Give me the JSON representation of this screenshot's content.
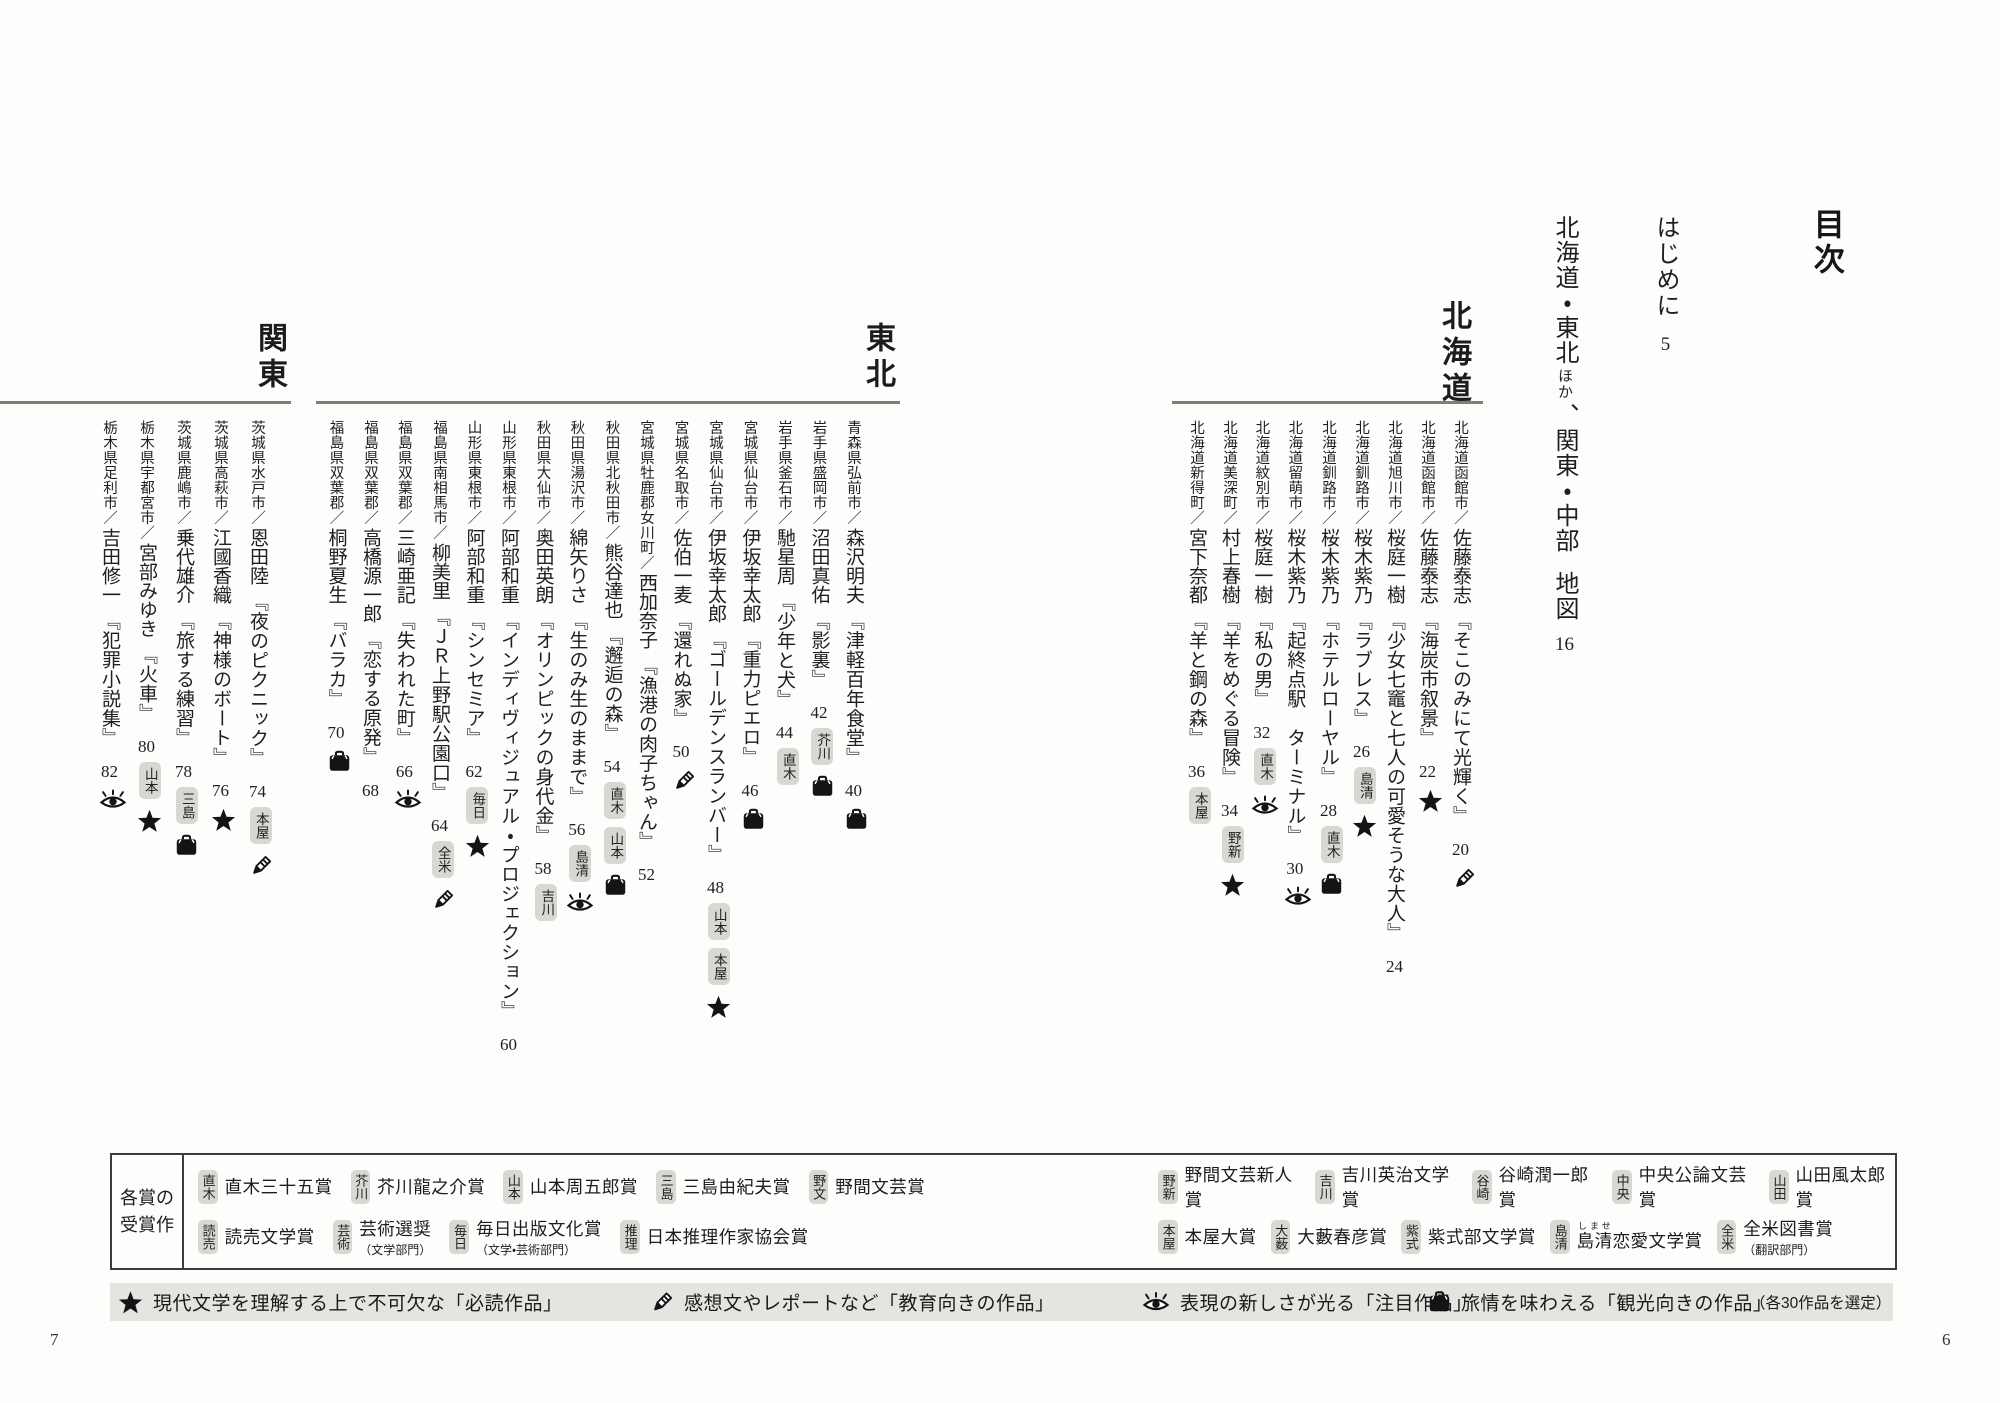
{
  "spread": {
    "title": "目次",
    "left_folio": "7",
    "right_folio": "6",
    "intro": {
      "label": "はじめに",
      "page": "5"
    },
    "map_line": {
      "part1": "北海道・東北",
      "small": "ほか",
      "part2": "、関東・中部",
      "label": "地図",
      "page": "16"
    }
  },
  "sections": [
    {
      "name": "北海道",
      "entries": [
        {
          "location": "北海道函館市",
          "author": "佐藤泰志",
          "title": "そこのみにて光輝く",
          "page": "20",
          "badges": [],
          "icons": [
            "pencil"
          ]
        },
        {
          "location": "北海道函館市",
          "author": "佐藤泰志",
          "title": "海炭市叙景",
          "page": "22",
          "badges": [],
          "icons": [
            "star"
          ]
        },
        {
          "location": "北海道旭川市",
          "author": "桜庭一樹",
          "title": "少女七竈と七人の可愛そうな大人",
          "page": "24",
          "badges": [],
          "icons": []
        },
        {
          "location": "北海道釧路市",
          "author": "桜木紫乃",
          "title": "ラブレス",
          "page": "26",
          "badges": [
            "島清"
          ],
          "icons": [
            "star"
          ]
        },
        {
          "location": "北海道釧路市",
          "author": "桜木紫乃",
          "title": "ホテルローヤル",
          "page": "28",
          "badges": [
            "直木"
          ],
          "icons": [
            "bag"
          ]
        },
        {
          "location": "北海道留萌市",
          "author": "桜木紫乃",
          "title": "起終点駅　ターミナル",
          "page": "30",
          "badges": [],
          "icons": [
            "eye"
          ]
        },
        {
          "location": "北海道紋別市",
          "author": "桜庭一樹",
          "title": "私の男",
          "page": "32",
          "badges": [
            "直木"
          ],
          "icons": [
            "eye"
          ]
        },
        {
          "location": "北海道美深町",
          "author": "村上春樹",
          "title": "羊をめぐる冒険",
          "page": "34",
          "badges": [
            "野新"
          ],
          "icons": [
            "star"
          ]
        },
        {
          "location": "北海道新得町",
          "author": "宮下奈都",
          "title": "羊と鋼の森",
          "page": "36",
          "badges": [
            "本屋"
          ],
          "icons": []
        }
      ]
    },
    {
      "name": "東北",
      "entries": [
        {
          "location": "青森県弘前市",
          "author": "森沢明夫",
          "title": "津軽百年食堂",
          "page": "40",
          "badges": [],
          "icons": [
            "bag"
          ]
        },
        {
          "location": "岩手県盛岡市",
          "author": "沼田真佑",
          "title": "影裏",
          "page": "42",
          "badges": [
            "芥川"
          ],
          "icons": [
            "bag"
          ]
        },
        {
          "location": "岩手県釜石市",
          "author": "馳星周",
          "title": "少年と犬",
          "page": "44",
          "badges": [
            "直木"
          ],
          "icons": []
        },
        {
          "location": "宮城県仙台市",
          "author": "伊坂幸太郎",
          "title": "重力ピエロ",
          "page": "46",
          "badges": [],
          "icons": [
            "bag"
          ]
        },
        {
          "location": "宮城県仙台市",
          "author": "伊坂幸太郎",
          "title": "ゴールデンスランバー",
          "page": "48",
          "badges": [
            "山本",
            "本屋"
          ],
          "icons": [
            "star"
          ]
        },
        {
          "location": "宮城県名取市",
          "author": "佐伯一麦",
          "title": "還れぬ家",
          "page": "50",
          "badges": [],
          "icons": [
            "pencil"
          ]
        },
        {
          "location": "宮城県牡鹿郡女川町",
          "author": "西加奈子",
          "title": "漁港の肉子ちゃん",
          "page": "52",
          "badges": [],
          "icons": []
        },
        {
          "location": "秋田県北秋田市",
          "author": "熊谷達也",
          "title": "邂逅の森",
          "page": "54",
          "badges": [
            "直木",
            "山本"
          ],
          "icons": [
            "bag"
          ]
        },
        {
          "location": "秋田県湯沢市",
          "author": "綿矢りさ",
          "title": "生のみ生のままで",
          "page": "56",
          "badges": [
            "島清"
          ],
          "icons": [
            "eye"
          ]
        },
        {
          "location": "秋田県大仙市",
          "author": "奥田英朗",
          "title": "オリンピックの身代金",
          "page": "58",
          "badges": [
            "吉川"
          ],
          "icons": []
        },
        {
          "location": "山形県東根市",
          "author": "阿部和重",
          "title": "インディヴィジュアル・プロジェクション",
          "page": "60",
          "badges": [],
          "icons": []
        },
        {
          "location": "山形県東根市",
          "author": "阿部和重",
          "title": "シンセミア",
          "page": "62",
          "badges": [
            "毎日"
          ],
          "icons": [
            "star"
          ]
        },
        {
          "location": "福島県南相馬市",
          "author": "柳美里",
          "title": "ＪＲ上野駅公園口",
          "page": "64",
          "badges": [
            "全米"
          ],
          "icons": [
            "pencil"
          ]
        },
        {
          "location": "福島県双葉郡",
          "author": "三崎亜記",
          "title": "失われた町",
          "page": "66",
          "badges": [],
          "icons": [
            "eye"
          ]
        },
        {
          "location": "福島県双葉郡",
          "author": "高橋源一郎",
          "title": "恋する原発",
          "page": "68",
          "badges": [],
          "icons": []
        },
        {
          "location": "福島県双葉郡",
          "author": "桐野夏生",
          "title": "バラカ",
          "page": "70",
          "badges": [],
          "icons": [
            "bag"
          ]
        }
      ]
    },
    {
      "name": "関東",
      "entries": [
        {
          "location": "茨城県水戸市",
          "author": "恩田陸",
          "title": "夜のピクニック",
          "page": "74",
          "badges": [
            "本屋"
          ],
          "icons": [
            "pencil"
          ]
        },
        {
          "location": "茨城県高萩市",
          "author": "江國香織",
          "title": "神様のボート",
          "page": "76",
          "badges": [],
          "icons": [
            "star"
          ]
        },
        {
          "location": "茨城県鹿嶋市",
          "author": "乗代雄介",
          "title": "旅する練習",
          "page": "78",
          "badges": [
            "三島"
          ],
          "icons": [
            "bag"
          ]
        },
        {
          "location": "栃木県宇都宮市",
          "author": "宮部みゆき",
          "title": "火車",
          "page": "80",
          "badges": [
            "山本"
          ],
          "icons": [
            "star"
          ]
        },
        {
          "location": "栃木県足利市",
          "author": "吉田修一",
          "title": "犯罪小説集",
          "page": "82",
          "badges": [],
          "icons": [
            "eye"
          ]
        }
      ]
    }
  ],
  "legend_awards": {
    "label_line1": "各賞の",
    "label_line2": "受賞作",
    "left_row1": [
      {
        "badge": "直木",
        "name": "直木三十五賞"
      },
      {
        "badge": "芥川",
        "name": "芥川龍之介賞"
      },
      {
        "badge": "山本",
        "name": "山本周五郎賞"
      },
      {
        "badge": "三島",
        "name": "三島由紀夫賞"
      },
      {
        "badge": "野文",
        "name": "野間文芸賞"
      }
    ],
    "left_row2": [
      {
        "badge": "読売",
        "name": "読売文学賞"
      },
      {
        "badge": "芸術",
        "name": "芸術選奨",
        "sub": "（文学部門）"
      },
      {
        "badge": "毎日",
        "name": "毎日出版文化賞",
        "sub": "（文学・芸術部門）"
      },
      {
        "badge": "推理",
        "name": "日本推理作家協会賞"
      }
    ],
    "right_row1": [
      {
        "badge": "野新",
        "name": "野間文芸新人賞"
      },
      {
        "badge": "吉川",
        "name": "吉川英治文学賞"
      },
      {
        "badge": "谷崎",
        "name": "谷崎潤一郎賞"
      },
      {
        "badge": "中央",
        "name": "中央公論文芸賞"
      },
      {
        "badge": "山田",
        "name": "山田風太郎賞"
      }
    ],
    "right_row2": [
      {
        "badge": "本屋",
        "name": "本屋大賞"
      },
      {
        "badge": "大薮",
        "name": "大藪春彦賞"
      },
      {
        "badge": "紫式",
        "name": "紫式部文学賞"
      },
      {
        "badge": "島清",
        "name": "島清恋愛文学賞",
        "ruby": "しませ"
      },
      {
        "badge": "全米",
        "name": "全米図書賞",
        "sub": "（翻訳部門）"
      }
    ]
  },
  "legend_icons": {
    "items": [
      {
        "icon": "star",
        "text": "現代文学を理解する上で不可欠な「必読作品」"
      },
      {
        "icon": "pencil",
        "text": "感想文やレポートなど「教育向きの作品」"
      },
      {
        "icon": "eye",
        "text": "表現の新しさが光る「注目作品」"
      },
      {
        "icon": "bag",
        "text": "旅情を味わえる「観光向きの作品」"
      }
    ],
    "note": "（各30作品を選定）"
  }
}
